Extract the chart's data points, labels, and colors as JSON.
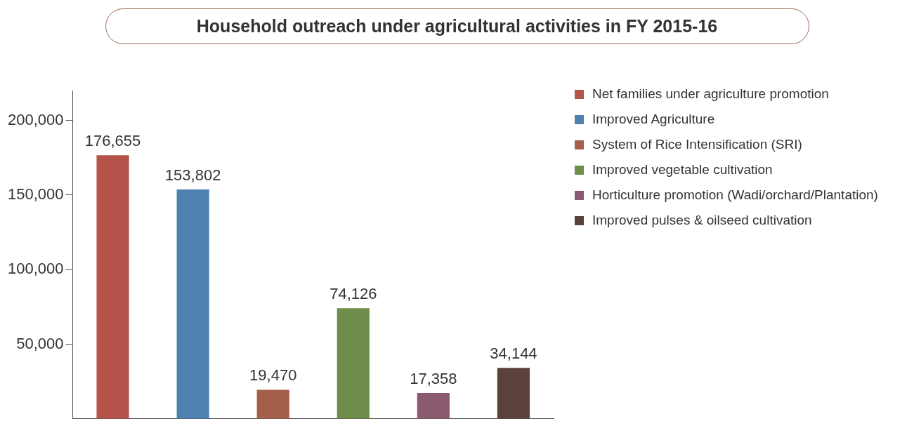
{
  "chart_data": {
    "type": "bar",
    "title": "Household outreach under agricultural activities in FY 2015-16",
    "categories": [
      null,
      null,
      null,
      null,
      null,
      null
    ],
    "series": [
      {
        "name": "Net families under agriculture promotion",
        "color": "#b5524a",
        "values": [
          176655,
          null,
          null,
          null,
          null,
          null
        ],
        "value_labels": [
          "176,655",
          null,
          null,
          null,
          null,
          null
        ]
      },
      {
        "name": "Improved Agriculture",
        "color": "#4f81b0",
        "values": [
          null,
          153802,
          null,
          null,
          null,
          null
        ],
        "value_labels": [
          null,
          "153,802",
          null,
          null,
          null,
          null
        ]
      },
      {
        "name": "System of Rice Intensification (SRI)",
        "color": "#a55e4a",
        "values": [
          null,
          null,
          19470,
          null,
          null,
          null
        ],
        "value_labels": [
          null,
          null,
          "19,470",
          null,
          null,
          null
        ]
      },
      {
        "name": "Improved vegetable cultivation",
        "color": "#6e8c4a",
        "values": [
          null,
          null,
          null,
          74126,
          null,
          null
        ],
        "value_labels": [
          null,
          null,
          null,
          "74,126",
          null,
          null
        ]
      },
      {
        "name": "Horticulture promotion (Wadi/orchard/Plantation)",
        "color": "#8a5a70",
        "values": [
          null,
          null,
          null,
          null,
          17358,
          null
        ],
        "value_labels": [
          null,
          null,
          null,
          null,
          "17,358",
          null
        ]
      },
      {
        "name": "Improved pulses & oilseed cultivation",
        "color": "#5a413c",
        "values": [
          null,
          null,
          null,
          null,
          null,
          34144
        ],
        "value_labels": [
          null,
          null,
          null,
          null,
          null,
          "34,144"
        ]
      }
    ],
    "ylim": [
      0,
      220000
    ],
    "yticks": [
      {
        "value": 50000,
        "label": "50,000"
      },
      {
        "value": 100000,
        "label": "100,000"
      },
      {
        "value": 150000,
        "label": "150,000"
      },
      {
        "value": 200000,
        "label": "200,000"
      }
    ],
    "tick_labels": "y",
    "grid": false,
    "legend": "top right"
  }
}
